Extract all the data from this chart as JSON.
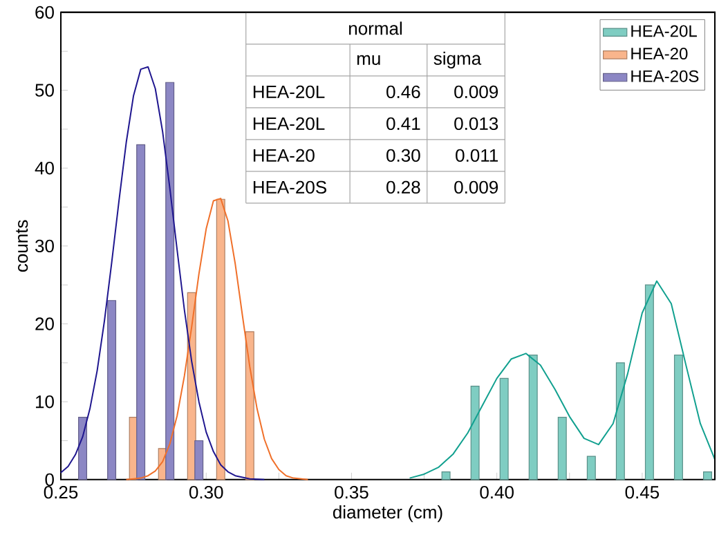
{
  "chart_data": {
    "type": "bar",
    "xlabel": "diameter (cm)",
    "ylabel": "counts",
    "xlim": [
      0.25,
      0.475
    ],
    "ylim": [
      0,
      60
    ],
    "xticks": [
      0.25,
      {
        "value": 0.275,
        "label": null
      },
      {
        "value": 0.3,
        "label": "0.30"
      },
      {
        "value": 0.325,
        "label": null
      },
      0.35,
      {
        "value": 0.375,
        "label": null
      },
      {
        "value": 0.4,
        "label": "0.40"
      },
      {
        "value": 0.425,
        "label": null
      },
      0.45
    ],
    "yticks": [
      0,
      {
        "value": 5,
        "label": null
      },
      10,
      {
        "value": 15,
        "label": null
      },
      20,
      {
        "value": 25,
        "label": null
      },
      30,
      {
        "value": 35,
        "label": null
      },
      40,
      {
        "value": 45,
        "label": null
      },
      50,
      {
        "value": 55,
        "label": null
      },
      60
    ],
    "legend": "top right",
    "series": [
      {
        "name": "HEA-20L",
        "color": "#7fcdc2",
        "x": [
          0.3825,
          0.3925,
          0.4025,
          0.4125,
          0.4225,
          0.4325,
          0.4425,
          0.4525,
          0.4625,
          0.4725
        ],
        "values": [
          1,
          12,
          13,
          16,
          8,
          3,
          15,
          25,
          16,
          1
        ]
      },
      {
        "name": "HEA-20",
        "color": "#f9b58c",
        "x": [
          0.275,
          0.285,
          0.295,
          0.305,
          0.315
        ],
        "values": [
          8,
          4,
          24,
          36,
          19
        ]
      },
      {
        "name": "HEA-20S",
        "color": "#8c87c4",
        "x": [
          0.2575,
          0.2675,
          0.2775,
          0.2875,
          0.2975
        ],
        "values": [
          8,
          23,
          43,
          51,
          5
        ]
      },
      {
        "type": "line",
        "color": "#11a08f",
        "x": [
          0.37,
          0.375,
          0.38,
          0.385,
          0.39,
          0.395,
          0.4,
          0.405,
          0.41,
          0.415,
          0.42,
          0.425,
          0.43,
          0.435,
          0.44,
          0.445,
          0.45,
          0.455,
          0.46,
          0.465,
          0.47,
          0.475
        ],
        "values": [
          0.2,
          0.7,
          1.6,
          3.3,
          6.0,
          9.5,
          13.0,
          15.5,
          16.2,
          14.7,
          11.6,
          8.1,
          5.3,
          4.5,
          7.2,
          13.6,
          21.4,
          25.5,
          22.6,
          14.8,
          7.2,
          2.6
        ]
      },
      {
        "type": "line",
        "color": "#f0702a",
        "x": [
          0.2725,
          0.275,
          0.2775,
          0.28,
          0.2825,
          0.285,
          0.2875,
          0.29,
          0.2925,
          0.295,
          0.2975,
          0.3,
          0.3025,
          0.305,
          0.3075,
          0.31,
          0.3125,
          0.315,
          0.3175,
          0.32,
          0.3225,
          0.325,
          0.3275,
          0.33,
          0.335
        ],
        "values": [
          0.0,
          0.1,
          0.2,
          0.5,
          1.1,
          2.3,
          4.6,
          8.2,
          13.3,
          19.6,
          26.4,
          32.2,
          35.8,
          36.1,
          33.2,
          27.7,
          21.0,
          14.5,
          9.1,
          5.2,
          2.7,
          1.3,
          0.5,
          0.2,
          0.0
        ]
      },
      {
        "type": "line",
        "color": "#1f168f",
        "x": [
          0.25,
          0.2525,
          0.255,
          0.2575,
          0.26,
          0.2625,
          0.265,
          0.2675,
          0.27,
          0.2725,
          0.275,
          0.2775,
          0.28,
          0.2825,
          0.285,
          0.2875,
          0.29,
          0.2925,
          0.295,
          0.2975,
          0.3,
          0.3025,
          0.305,
          0.3075,
          0.31,
          0.315,
          0.32
        ],
        "values": [
          0.9,
          1.7,
          3.2,
          5.5,
          9.1,
          14.0,
          20.4,
          27.9,
          35.8,
          43.3,
          49.3,
          52.7,
          53.0,
          50.2,
          44.7,
          37.4,
          29.5,
          21.8,
          15.2,
          10.0,
          6.1,
          3.6,
          1.9,
          1.0,
          0.5,
          0.1,
          0.0
        ]
      }
    ],
    "annotations": [
      "normal",
      "mu",
      "sigma",
      "HEA-20L",
      "0.46",
      "0.009",
      "HEA-20L",
      "0.41",
      "0.013",
      "HEA-20",
      "0.30",
      "0.011",
      "HEA-20S",
      "0.28",
      "0.009"
    ]
  }
}
